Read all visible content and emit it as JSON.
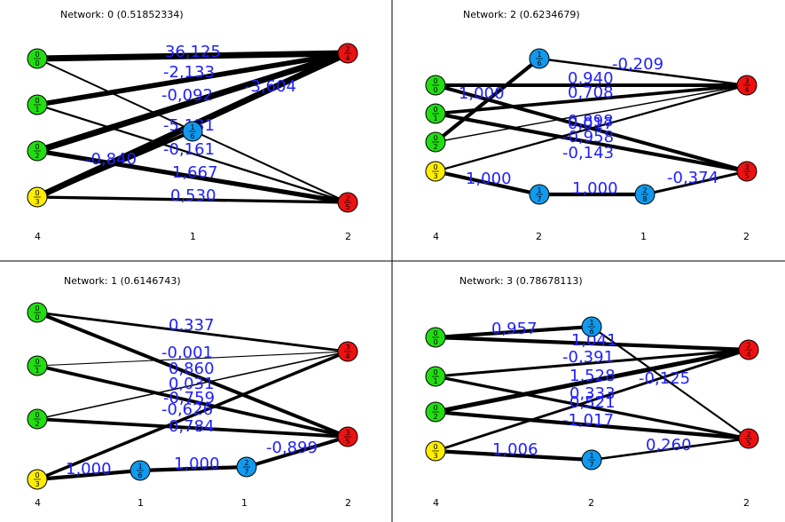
{
  "colors": {
    "input": "#22dd11",
    "bias": "#ffee00",
    "hidden": "#1199ee",
    "output": "#ee1111",
    "weight_text": "#2020ff",
    "edge": "#000000",
    "divider": "#000000"
  },
  "networks": [
    {
      "title": "Network: 0 (0.51852334)",
      "layer_counts": [
        "4",
        "1",
        "2"
      ],
      "nodes": [
        {
          "id": "n0",
          "top": "0",
          "bottom": "0",
          "kind": "input"
        },
        {
          "id": "n1",
          "top": "0",
          "bottom": "1",
          "kind": "input"
        },
        {
          "id": "n2",
          "top": "0",
          "bottom": "2",
          "kind": "input"
        },
        {
          "id": "n3",
          "top": "0",
          "bottom": "3",
          "kind": "bias"
        },
        {
          "id": "n6",
          "top": "1",
          "bottom": "6",
          "kind": "hidden"
        },
        {
          "id": "n4",
          "top": "2",
          "bottom": "4",
          "kind": "output"
        },
        {
          "id": "n5",
          "top": "2",
          "bottom": "5",
          "kind": "output"
        }
      ],
      "edges": [
        {
          "from": "n0",
          "to": "n4",
          "weight": 36.125
        },
        {
          "from": "n1",
          "to": "n4",
          "weight": -2.133
        },
        {
          "from": "n0",
          "to": "n5",
          "weight": -0.092
        },
        {
          "from": "n3",
          "to": "n4",
          "weight": -3.604
        },
        {
          "from": "n2",
          "to": "n4",
          "weight": -5.131
        },
        {
          "from": "n1",
          "to": "n5",
          "weight": -0.161
        },
        {
          "from": "n3",
          "to": "n6",
          "weight": -0.84
        },
        {
          "from": "n2",
          "to": "n5",
          "weight": 1.667
        },
        {
          "from": "n3",
          "to": "n5",
          "weight": 0.53
        }
      ],
      "labels": [
        "36,125",
        "-2,133",
        "-0,092",
        "-3,604",
        "-5,131",
        "-0,161",
        "-0,840",
        "1,667",
        "0,530"
      ]
    },
    {
      "title": "Network: 2 (0.6234679)",
      "layer_counts": [
        "4",
        "2",
        "1",
        "2"
      ],
      "nodes": [
        {
          "id": "n0",
          "top": "0",
          "bottom": "0",
          "kind": "input"
        },
        {
          "id": "n1",
          "top": "0",
          "bottom": "1",
          "kind": "input"
        },
        {
          "id": "n2",
          "top": "0",
          "bottom": "2",
          "kind": "input"
        },
        {
          "id": "n3",
          "top": "0",
          "bottom": "3",
          "kind": "bias"
        },
        {
          "id": "n6",
          "top": "1",
          "bottom": "6",
          "kind": "hidden"
        },
        {
          "id": "n7",
          "top": "1",
          "bottom": "7",
          "kind": "hidden"
        },
        {
          "id": "n8",
          "top": "2",
          "bottom": "8",
          "kind": "hidden"
        },
        {
          "id": "n4",
          "top": "3",
          "bottom": "4",
          "kind": "output"
        },
        {
          "id": "n5",
          "top": "3",
          "bottom": "5",
          "kind": "output"
        }
      ],
      "edges": [
        {
          "from": "n6",
          "to": "n4",
          "weight": -0.209
        },
        {
          "from": "n0",
          "to": "n4",
          "weight": 0.94
        },
        {
          "from": "n2",
          "to": "n6",
          "weight": 1.0
        },
        {
          "from": "n1",
          "to": "n4",
          "weight": 0.708
        },
        {
          "from": "n0",
          "to": "n5",
          "weight": 0.898
        },
        {
          "from": "n2",
          "to": "n4",
          "weight": 0.017
        },
        {
          "from": "n1",
          "to": "n5",
          "weight": -0.958
        },
        {
          "from": "n3",
          "to": "n4",
          "weight": -0.143
        },
        {
          "from": "n8",
          "to": "n5",
          "weight": -0.374
        },
        {
          "from": "n3",
          "to": "n7",
          "weight": 1.0
        },
        {
          "from": "n7",
          "to": "n8",
          "weight": 1.0
        }
      ],
      "labels": [
        "-0,209",
        "0,940",
        "1,000",
        "0,708",
        "0,898",
        "0,017",
        "-0,958",
        "-0,143",
        "-0,374",
        "1,000",
        "1,000"
      ]
    },
    {
      "title": "Network: 1 (0.6146743)",
      "layer_counts": [
        "4",
        "1",
        "1",
        "2"
      ],
      "nodes": [
        {
          "id": "n0",
          "top": "0",
          "bottom": "0",
          "kind": "input"
        },
        {
          "id": "n1",
          "top": "0",
          "bottom": "1",
          "kind": "input"
        },
        {
          "id": "n2",
          "top": "0",
          "bottom": "2",
          "kind": "input"
        },
        {
          "id": "n3",
          "top": "0",
          "bottom": "3",
          "kind": "bias"
        },
        {
          "id": "n6",
          "top": "1",
          "bottom": "6",
          "kind": "hidden"
        },
        {
          "id": "n7",
          "top": "2",
          "bottom": "7",
          "kind": "hidden"
        },
        {
          "id": "n4",
          "top": "3",
          "bottom": "4",
          "kind": "output"
        },
        {
          "id": "n5",
          "top": "3",
          "bottom": "5",
          "kind": "output"
        }
      ],
      "edges": [
        {
          "from": "n0",
          "to": "n4",
          "weight": 0.337
        },
        {
          "from": "n1",
          "to": "n4",
          "weight": -0.001
        },
        {
          "from": "n0",
          "to": "n5",
          "weight": 0.86
        },
        {
          "from": "n2",
          "to": "n4",
          "weight": 0.031
        },
        {
          "from": "n1",
          "to": "n5",
          "weight": -0.759
        },
        {
          "from": "n3",
          "to": "n4",
          "weight": -0.626
        },
        {
          "from": "n2",
          "to": "n5",
          "weight": 0.784
        },
        {
          "from": "n7",
          "to": "n5",
          "weight": -0.899
        },
        {
          "from": "n3",
          "to": "n6",
          "weight": 1.0
        },
        {
          "from": "n6",
          "to": "n7",
          "weight": 1.0
        }
      ],
      "labels": [
        "0,337",
        "-0,001",
        "0,860",
        "0,031",
        "-0,759",
        "-0,626",
        "0,784",
        "-0,899",
        "1,000",
        "1,000"
      ]
    },
    {
      "title": "Network: 3 (0.78678113)",
      "layer_counts": [
        "4",
        "2",
        "2"
      ],
      "nodes": [
        {
          "id": "n0",
          "top": "0",
          "bottom": "0",
          "kind": "input"
        },
        {
          "id": "n1",
          "top": "0",
          "bottom": "1",
          "kind": "input"
        },
        {
          "id": "n2",
          "top": "0",
          "bottom": "2",
          "kind": "input"
        },
        {
          "id": "n3",
          "top": "0",
          "bottom": "3",
          "kind": "bias"
        },
        {
          "id": "n6",
          "top": "1",
          "bottom": "6",
          "kind": "hidden"
        },
        {
          "id": "n7",
          "top": "1",
          "bottom": "7",
          "kind": "hidden"
        },
        {
          "id": "n4",
          "top": "2",
          "bottom": "4",
          "kind": "output"
        },
        {
          "id": "n5",
          "top": "2",
          "bottom": "5",
          "kind": "output"
        }
      ],
      "edges": [
        {
          "from": "n0",
          "to": "n6",
          "weight": 0.957
        },
        {
          "from": "n0",
          "to": "n4",
          "weight": 1.041
        },
        {
          "from": "n1",
          "to": "n4",
          "weight": -0.391
        },
        {
          "from": "n2",
          "to": "n4",
          "weight": 1.528
        },
        {
          "from": "n6",
          "to": "n5",
          "weight": -0.125
        },
        {
          "from": "n3",
          "to": "n4",
          "weight": 0.333
        },
        {
          "from": "n1",
          "to": "n5",
          "weight": 0.521
        },
        {
          "from": "n2",
          "to": "n5",
          "weight": -1.017
        },
        {
          "from": "n3",
          "to": "n7",
          "weight": 1.006
        },
        {
          "from": "n7",
          "to": "n5",
          "weight": 0.26
        }
      ],
      "labels": [
        "0,957",
        "1,041",
        "-0,391",
        "1,528",
        "-0,125",
        "0,333",
        "0,521",
        "-1,017",
        "1,006",
        "0,260"
      ]
    }
  ]
}
